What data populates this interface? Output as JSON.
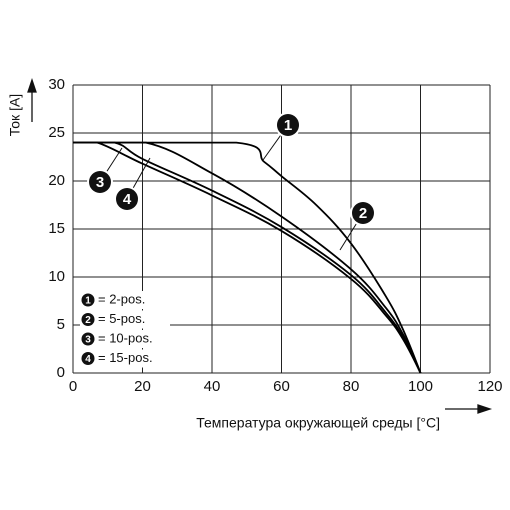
{
  "chart_data": {
    "type": "line",
    "x_label": "Температура окружающей среды [°C]",
    "y_label": "Ток [A]",
    "xlim": [
      0,
      120
    ],
    "xticks": [
      0,
      20,
      40,
      60,
      80,
      100,
      120
    ],
    "ylim": [
      0,
      30
    ],
    "yticks": [
      0,
      5,
      10,
      15,
      20,
      25,
      30
    ],
    "grid": true,
    "legend": "lower left",
    "series": [
      {
        "name": "= 2-pos.",
        "label": "1",
        "color": "#000000",
        "x": [
          0,
          47,
          55,
          60,
          70,
          80,
          90,
          95,
          100
        ],
        "values": [
          24,
          24,
          22,
          20.5,
          17.5,
          13.5,
          8,
          4.5,
          0
        ]
      },
      {
        "name": "= 5-pos.",
        "label": "2",
        "color": "#000000",
        "x": [
          0,
          21,
          40,
          60,
          80,
          90,
          95,
          100
        ],
        "values": [
          24,
          24,
          20.8,
          16.3,
          10.8,
          6.8,
          4,
          0
        ]
      },
      {
        "name": "= 10-pos.",
        "label": "3",
        "color": "#000000",
        "x": [
          0,
          7,
          20,
          40,
          60,
          80,
          90,
          95,
          100
        ],
        "values": [
          24,
          24,
          21.8,
          18.5,
          14.8,
          9.8,
          6,
          3.5,
          0
        ]
      },
      {
        "name": "= 15-pos.",
        "label": "4",
        "color": "#000000",
        "x": [
          0,
          12,
          20,
          40,
          60,
          80,
          90,
          95,
          100
        ],
        "values": [
          24,
          24,
          22.3,
          19,
          15.2,
          10.2,
          6.3,
          3.7,
          0
        ]
      }
    ]
  }
}
